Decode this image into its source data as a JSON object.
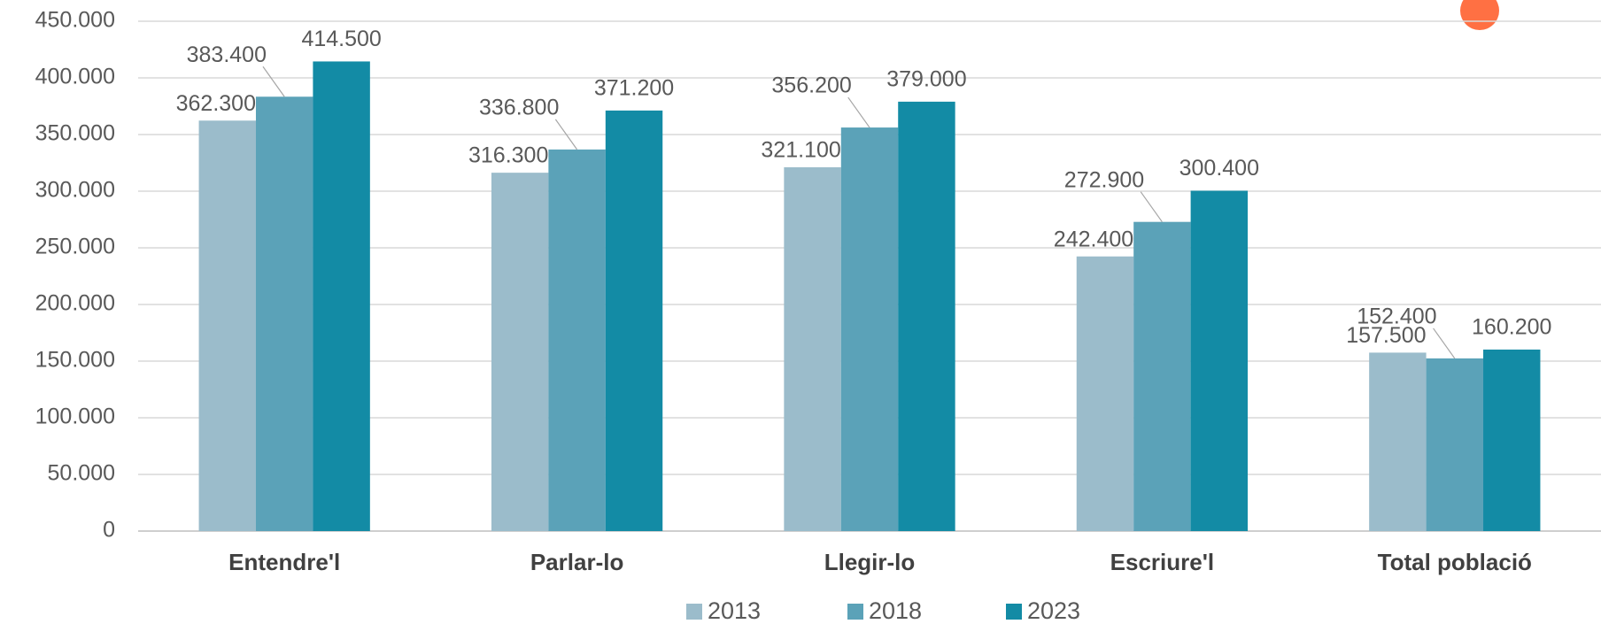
{
  "chart_data": {
    "type": "bar",
    "categories": [
      "Entendre'l",
      "Parlar-lo",
      "Llegir-lo",
      "Escriure'l",
      "Total població"
    ],
    "series": [
      {
        "name": "2013",
        "color": "#9bbccb",
        "values": [
          362300,
          316300,
          321100,
          242400,
          157500
        ],
        "value_labels": [
          "362.300",
          "316.300",
          "321.100",
          "242.400",
          "157.500"
        ]
      },
      {
        "name": "2018",
        "color": "#5ba2b8",
        "values": [
          383400,
          336800,
          356200,
          272900,
          152400
        ],
        "value_labels": [
          "383.400",
          "336.800",
          "356.200",
          "272.900",
          "152.400"
        ]
      },
      {
        "name": "2023",
        "color": "#138ba5",
        "values": [
          414500,
          371200,
          379000,
          300400,
          160200
        ],
        "value_labels": [
          "414.500",
          "371.200",
          "379.000",
          "300.400",
          "160.200"
        ]
      }
    ],
    "ylim": [
      0,
      450000
    ],
    "yticks": [
      0,
      {
        "value": 50000,
        "label": "50.000"
      },
      {
        "value": 100000,
        "label": "100.000"
      },
      {
        "value": 150000,
        "label": "150.000"
      },
      {
        "value": 200000,
        "label": "200.000"
      },
      {
        "value": 250000,
        "label": "250.000"
      },
      {
        "value": 300000,
        "label": "300.000"
      },
      {
        "value": 350000,
        "label": "350.000"
      },
      {
        "value": 400000,
        "label": "400.000"
      },
      {
        "value": 450000,
        "label": "450.000"
      }
    ],
    "grid": true,
    "legend": "bottom"
  }
}
